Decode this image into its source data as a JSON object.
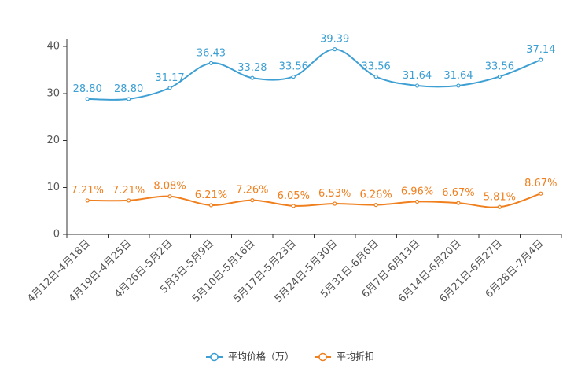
{
  "chart_data": {
    "type": "line",
    "title": "",
    "xlabel": "",
    "ylabel": "",
    "ylim": [
      0,
      40
    ],
    "yticks": [
      0,
      10,
      20,
      30,
      40
    ],
    "grid": false,
    "legend": "bottom-center",
    "smooth": true,
    "categories": [
      "4月12日-4月18日",
      "4月19日-4月25日",
      "4月26日-5月2日",
      "5月3日-5月9日",
      "5月10日-5月16日",
      "5月17日-5月23日",
      "5月24日-5月30日",
      "5月31日-6月6日",
      "6月7日-6月13日",
      "6月14日-6月20日",
      "6月21日-6月27日",
      "6月28日-7月4日"
    ],
    "series": [
      {
        "name": "平均价格（万）",
        "color": "#3d9fd3",
        "values": [
          28.8,
          28.8,
          31.17,
          36.43,
          33.28,
          33.56,
          39.39,
          33.56,
          31.64,
          31.64,
          33.56,
          37.14
        ],
        "labels": [
          "28.80",
          "28.80",
          "31.17",
          "36.43",
          "33.28",
          "33.56",
          "39.39",
          "33.56",
          "31.64",
          "31.64",
          "33.56",
          "37.14"
        ]
      },
      {
        "name": "平均折扣",
        "color": "#f07f1e",
        "values": [
          7.21,
          7.21,
          8.08,
          6.21,
          7.26,
          6.05,
          6.53,
          6.26,
          6.96,
          6.67,
          5.81,
          8.67
        ],
        "labels": [
          "7.21%",
          "7.21%",
          "8.08%",
          "6.21%",
          "7.26%",
          "6.05%",
          "6.53%",
          "6.26%",
          "6.96%",
          "6.67%",
          "5.81%",
          "8.67%"
        ]
      }
    ]
  }
}
